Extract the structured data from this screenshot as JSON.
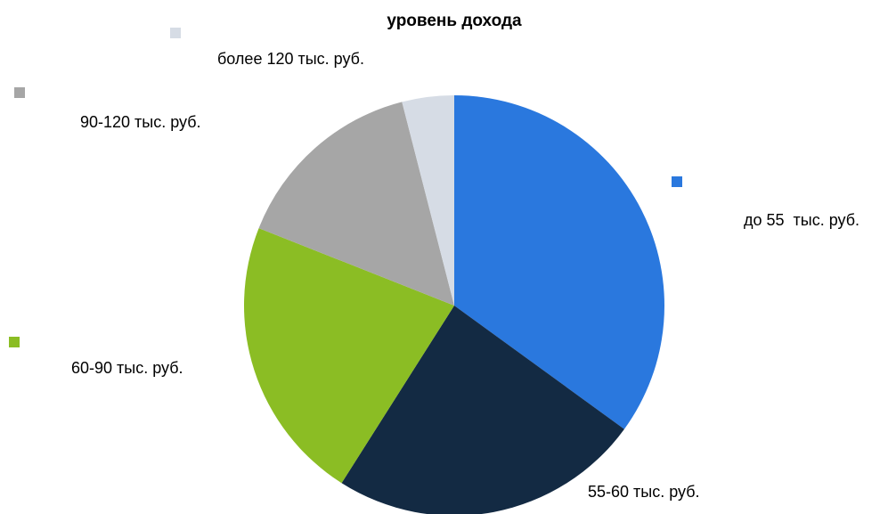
{
  "chart_data": {
    "type": "pie",
    "title": "уровень дохода",
    "categories": [
      "до 55  тыс. руб.",
      "55-60 тыс. руб.",
      "60-90 тыс. руб.",
      "90-120 тыс. руб.",
      "более 120 тыс. руб."
    ],
    "values": [
      35,
      24,
      22,
      15,
      4
    ],
    "colors": [
      "#2a78de",
      "#132a43",
      "#8bbd24",
      "#a6a6a6",
      "#d6dce5"
    ]
  }
}
